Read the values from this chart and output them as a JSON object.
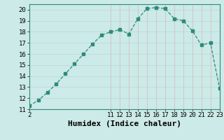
{
  "x": [
    2,
    3,
    4,
    5,
    6,
    7,
    8,
    9,
    10,
    11,
    12,
    13,
    14,
    15,
    16,
    17,
    18,
    19,
    20,
    21,
    22,
    23
  ],
  "y": [
    11.3,
    11.8,
    12.5,
    13.3,
    14.2,
    15.1,
    16.0,
    16.9,
    17.7,
    18.0,
    18.2,
    17.8,
    19.2,
    20.1,
    20.2,
    20.1,
    19.2,
    19.0,
    18.1,
    16.8,
    17.0,
    12.9
  ],
  "line_color": "#2e8b7a",
  "bg_color": "#cceae7",
  "grid_color_h": "#b8d8d5",
  "grid_color_v": "#d4b8b8",
  "xlabel": "Humidex (Indice chaleur)",
  "xlabel_fontsize": 8,
  "tick_fontsize": 6.5,
  "ylim": [
    11,
    20.5
  ],
  "xlim": [
    2,
    23
  ],
  "yticks": [
    11,
    12,
    13,
    14,
    15,
    16,
    17,
    18,
    19,
    20
  ],
  "xticks": [
    2,
    11,
    12,
    13,
    14,
    15,
    16,
    17,
    18,
    19,
    20,
    21,
    22,
    23
  ],
  "marker_size": 2.5,
  "line_width": 0.9
}
